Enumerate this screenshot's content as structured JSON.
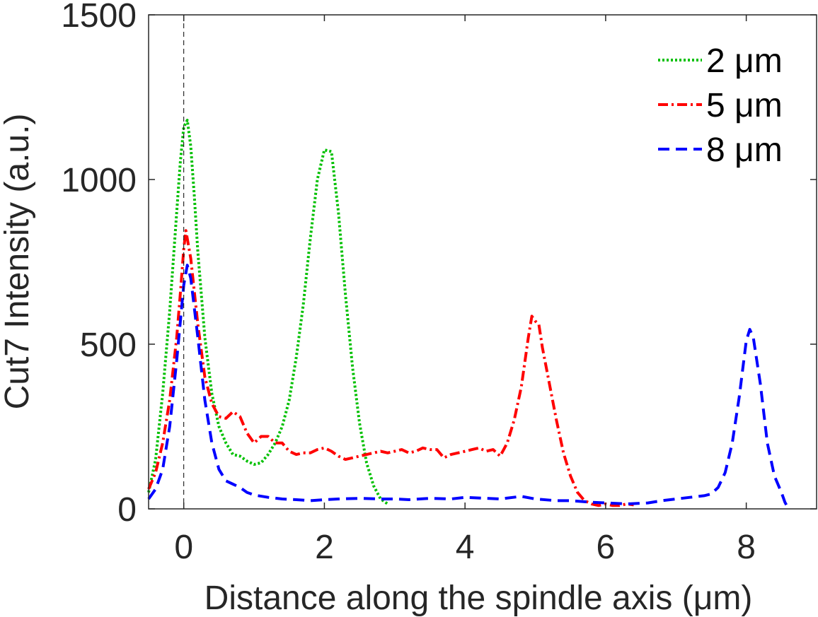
{
  "chart_data": {
    "type": "line",
    "xlabel": "Distance along the spindle axis (μm)",
    "ylabel": "Cut7 Intensity (a.u.)",
    "xlim": [
      -0.5,
      9
    ],
    "ylim": [
      0,
      1500
    ],
    "xticks": [
      0,
      2,
      4,
      6,
      8
    ],
    "yticks": [
      0,
      500,
      1000,
      1500
    ],
    "xtick_labels": [
      "0",
      "2",
      "4",
      "6",
      "8"
    ],
    "ytick_labels": [
      "0",
      "500",
      "1000",
      "1500"
    ],
    "grid": false,
    "legend_position": "top-right",
    "reference_line": {
      "x": 0,
      "style": "dashed",
      "color": "#000000"
    },
    "series": [
      {
        "name": "2 μm",
        "color": "#00c000",
        "dash": "dotted",
        "points": [
          [
            -0.5,
            50
          ],
          [
            -0.4,
            150
          ],
          [
            -0.3,
            350
          ],
          [
            -0.2,
            600
          ],
          [
            -0.1,
            900
          ],
          [
            -0.05,
            1050
          ],
          [
            0.0,
            1160
          ],
          [
            0.05,
            1180
          ],
          [
            0.1,
            1100
          ],
          [
            0.15,
            950
          ],
          [
            0.2,
            780
          ],
          [
            0.3,
            520
          ],
          [
            0.4,
            350
          ],
          [
            0.5,
            250
          ],
          [
            0.6,
            200
          ],
          [
            0.7,
            165
          ],
          [
            0.8,
            160
          ],
          [
            0.9,
            145
          ],
          [
            1.0,
            135
          ],
          [
            1.1,
            140
          ],
          [
            1.2,
            165
          ],
          [
            1.3,
            200
          ],
          [
            1.4,
            250
          ],
          [
            1.5,
            330
          ],
          [
            1.6,
            460
          ],
          [
            1.7,
            620
          ],
          [
            1.8,
            820
          ],
          [
            1.9,
            1000
          ],
          [
            2.0,
            1090
          ],
          [
            2.1,
            1085
          ],
          [
            2.2,
            900
          ],
          [
            2.3,
            650
          ],
          [
            2.4,
            430
          ],
          [
            2.5,
            260
          ],
          [
            2.6,
            140
          ],
          [
            2.7,
            70
          ],
          [
            2.8,
            30
          ],
          [
            2.9,
            15
          ]
        ]
      },
      {
        "name": "5 μm",
        "color": "#ff0000",
        "dash": "dashdot",
        "points": [
          [
            -0.5,
            60
          ],
          [
            -0.4,
            110
          ],
          [
            -0.3,
            200
          ],
          [
            -0.2,
            330
          ],
          [
            -0.1,
            520
          ],
          [
            -0.05,
            650
          ],
          [
            0.0,
            790
          ],
          [
            0.03,
            845
          ],
          [
            0.1,
            760
          ],
          [
            0.2,
            560
          ],
          [
            0.3,
            400
          ],
          [
            0.4,
            320
          ],
          [
            0.5,
            280
          ],
          [
            0.6,
            275
          ],
          [
            0.7,
            295
          ],
          [
            0.8,
            280
          ],
          [
            0.9,
            230
          ],
          [
            1.0,
            200
          ],
          [
            1.1,
            220
          ],
          [
            1.2,
            220
          ],
          [
            1.3,
            200
          ],
          [
            1.4,
            200
          ],
          [
            1.5,
            175
          ],
          [
            1.6,
            165
          ],
          [
            1.7,
            170
          ],
          [
            1.8,
            170
          ],
          [
            1.9,
            180
          ],
          [
            2.0,
            185
          ],
          [
            2.1,
            175
          ],
          [
            2.2,
            160
          ],
          [
            2.3,
            150
          ],
          [
            2.4,
            155
          ],
          [
            2.5,
            160
          ],
          [
            2.6,
            165
          ],
          [
            2.7,
            170
          ],
          [
            2.8,
            175
          ],
          [
            2.9,
            170
          ],
          [
            3.0,
            175
          ],
          [
            3.1,
            180
          ],
          [
            3.2,
            170
          ],
          [
            3.3,
            175
          ],
          [
            3.4,
            185
          ],
          [
            3.5,
            180
          ],
          [
            3.6,
            180
          ],
          [
            3.7,
            155
          ],
          [
            3.8,
            165
          ],
          [
            3.9,
            170
          ],
          [
            4.0,
            175
          ],
          [
            4.1,
            180
          ],
          [
            4.2,
            185
          ],
          [
            4.3,
            175
          ],
          [
            4.4,
            180
          ],
          [
            4.5,
            160
          ],
          [
            4.6,
            200
          ],
          [
            4.7,
            270
          ],
          [
            4.8,
            370
          ],
          [
            4.9,
            520
          ],
          [
            4.95,
            585
          ],
          [
            5.0,
            570
          ],
          [
            5.05,
            560
          ],
          [
            5.1,
            490
          ],
          [
            5.2,
            380
          ],
          [
            5.3,
            270
          ],
          [
            5.4,
            170
          ],
          [
            5.5,
            100
          ],
          [
            5.6,
            50
          ],
          [
            5.7,
            25
          ],
          [
            5.8,
            15
          ],
          [
            5.9,
            10
          ],
          [
            6.0,
            15
          ],
          [
            6.1,
            10
          ],
          [
            6.2,
            10
          ],
          [
            6.3,
            15
          ],
          [
            6.4,
            12
          ]
        ]
      },
      {
        "name": "8 μm",
        "color": "#0000ff",
        "dash": "dashed",
        "points": [
          [
            -0.5,
            30
          ],
          [
            -0.4,
            60
          ],
          [
            -0.3,
            120
          ],
          [
            -0.2,
            250
          ],
          [
            -0.1,
            450
          ],
          [
            0.0,
            680
          ],
          [
            0.05,
            740
          ],
          [
            0.1,
            700
          ],
          [
            0.2,
            520
          ],
          [
            0.3,
            330
          ],
          [
            0.4,
            200
          ],
          [
            0.5,
            120
          ],
          [
            0.6,
            85
          ],
          [
            0.7,
            75
          ],
          [
            0.8,
            65
          ],
          [
            0.9,
            50
          ],
          [
            1.0,
            42
          ],
          [
            1.2,
            35
          ],
          [
            1.4,
            30
          ],
          [
            1.6,
            28
          ],
          [
            1.8,
            25
          ],
          [
            2.0,
            28
          ],
          [
            2.2,
            30
          ],
          [
            2.5,
            32
          ],
          [
            2.8,
            30
          ],
          [
            3.0,
            30
          ],
          [
            3.2,
            28
          ],
          [
            3.5,
            32
          ],
          [
            3.8,
            30
          ],
          [
            4.0,
            35
          ],
          [
            4.3,
            32
          ],
          [
            4.5,
            30
          ],
          [
            4.8,
            38
          ],
          [
            5.0,
            30
          ],
          [
            5.3,
            25
          ],
          [
            5.5,
            25
          ],
          [
            5.8,
            20
          ],
          [
            6.0,
            18
          ],
          [
            6.3,
            15
          ],
          [
            6.6,
            18
          ],
          [
            6.8,
            25
          ],
          [
            7.0,
            30
          ],
          [
            7.2,
            35
          ],
          [
            7.4,
            40
          ],
          [
            7.5,
            45
          ],
          [
            7.6,
            65
          ],
          [
            7.7,
            110
          ],
          [
            7.8,
            200
          ],
          [
            7.9,
            340
          ],
          [
            8.0,
            510
          ],
          [
            8.05,
            545
          ],
          [
            8.1,
            520
          ],
          [
            8.2,
            380
          ],
          [
            8.3,
            200
          ],
          [
            8.4,
            100
          ],
          [
            8.5,
            50
          ],
          [
            8.55,
            20
          ],
          [
            8.6,
            0
          ]
        ]
      }
    ]
  }
}
